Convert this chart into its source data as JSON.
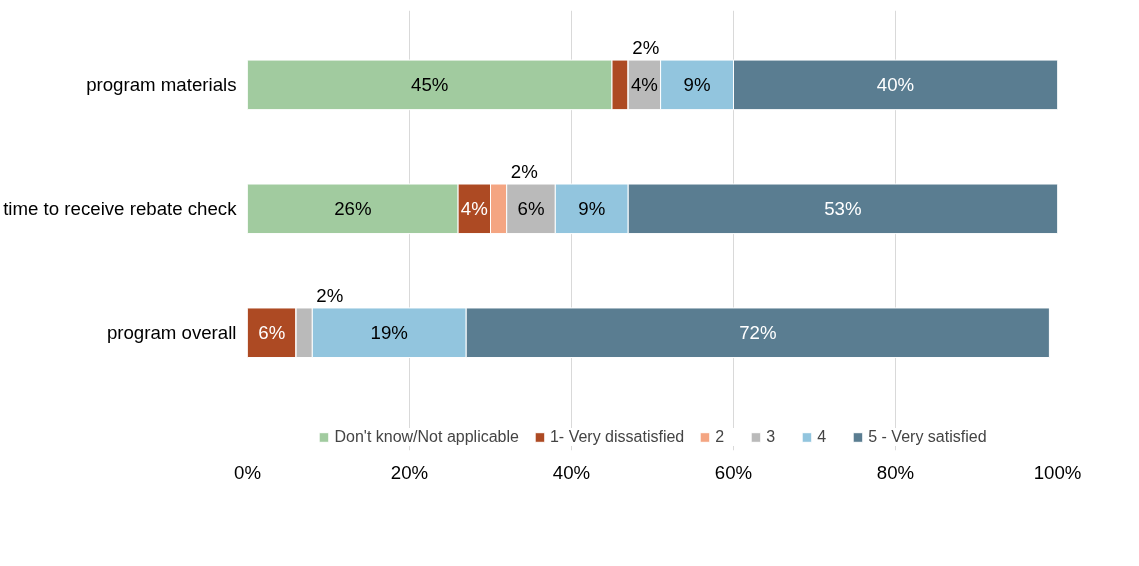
{
  "chart_data": {
    "type": "bar",
    "orientation": "horizontal",
    "stacked": true,
    "categories": [
      "program materials",
      "time to receive rebate check",
      "program overall"
    ],
    "series": [
      {
        "name": "Don't know/Not applicable",
        "color": "#a1cb9f",
        "values": [
          45,
          26,
          0
        ],
        "value_labels": [
          "45%",
          "26%",
          null
        ]
      },
      {
        "name": "1- Very dissatisfied",
        "color": "#ad4a23",
        "values": [
          2,
          4,
          6
        ],
        "value_labels": [
          "2%",
          "4%",
          "6%"
        ]
      },
      {
        "name": "2",
        "color": "#f4a582",
        "values": [
          0,
          2,
          0
        ],
        "value_labels": [
          null,
          "2%",
          null
        ]
      },
      {
        "name": "3",
        "color": "#bababa",
        "values": [
          4,
          6,
          2
        ],
        "value_labels": [
          "4%",
          "6%",
          "2%"
        ]
      },
      {
        "name": "4",
        "color": "#92c5de",
        "values": [
          9,
          9,
          19
        ],
        "value_labels": [
          "9%",
          "9%",
          "19%"
        ]
      },
      {
        "name": "5 - Very satisfied",
        "color": "#5a7d91",
        "values": [
          40,
          53,
          72
        ],
        "value_labels": [
          "40%",
          "53%",
          "72%"
        ]
      }
    ],
    "xlim": [
      0,
      100
    ],
    "xticks": [
      {
        "value": 0,
        "label": "0%"
      },
      {
        "value": 20,
        "label": "20%"
      },
      {
        "value": 40,
        "label": "40%"
      },
      {
        "value": 60,
        "label": "60%"
      },
      {
        "value": 80,
        "label": "80%"
      },
      {
        "value": 100,
        "label": "100%"
      }
    ],
    "grid": "x",
    "legend": "bottom"
  }
}
